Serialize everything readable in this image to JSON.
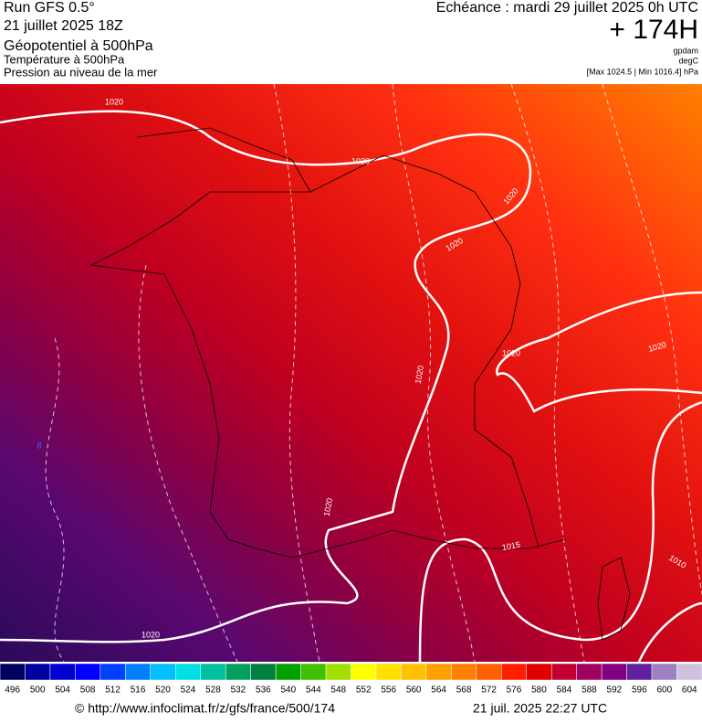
{
  "header": {
    "run": "Run GFS 0.5°",
    "date": "21 juillet 2025 18Z",
    "field": "Géopotentiel à 500hPa",
    "field2": "Température à 500hPa",
    "field3": "Pression au niveau de la mer",
    "valid": "Echéance : mardi 29 juillet 2025 0h UTC",
    "lead": "+ 174H",
    "unit1": "gpdam",
    "unit2": "degC",
    "range": "[Max 1024.5 | Min 1016.4] hPa"
  },
  "map": {
    "contour_labels": [
      "1020",
      "1020",
      "1020",
      "1020",
      "1020",
      "1020",
      "1020",
      "1020",
      "1020",
      "1015",
      "1010",
      "8"
    ]
  },
  "legend": {
    "labels": [
      "496",
      "500",
      "504",
      "508",
      "512",
      "516",
      "520",
      "524",
      "528",
      "532",
      "536",
      "540",
      "544",
      "548",
      "552",
      "556",
      "560",
      "564",
      "568",
      "572",
      "576",
      "580",
      "584",
      "588",
      "592",
      "596",
      "600",
      "604"
    ],
    "colors": [
      "#000060",
      "#0000a0",
      "#0000d0",
      "#0000ff",
      "#0040ff",
      "#0080ff",
      "#00c0ff",
      "#00e0e0",
      "#00c0a0",
      "#00a060",
      "#008040",
      "#00a000",
      "#40c000",
      "#a0e000",
      "#ffff00",
      "#ffe000",
      "#ffc000",
      "#ffa000",
      "#ff8000",
      "#ff6000",
      "#ff2000",
      "#e00000",
      "#c00030",
      "#a00060",
      "#800080",
      "#6020a0",
      "#a080c0",
      "#d0c0e0"
    ]
  },
  "footer": {
    "url": "© http://www.infoclimat.fr/z/gfs/france/500/174",
    "stamp": "21 juil. 2025 22:27 UTC"
  }
}
